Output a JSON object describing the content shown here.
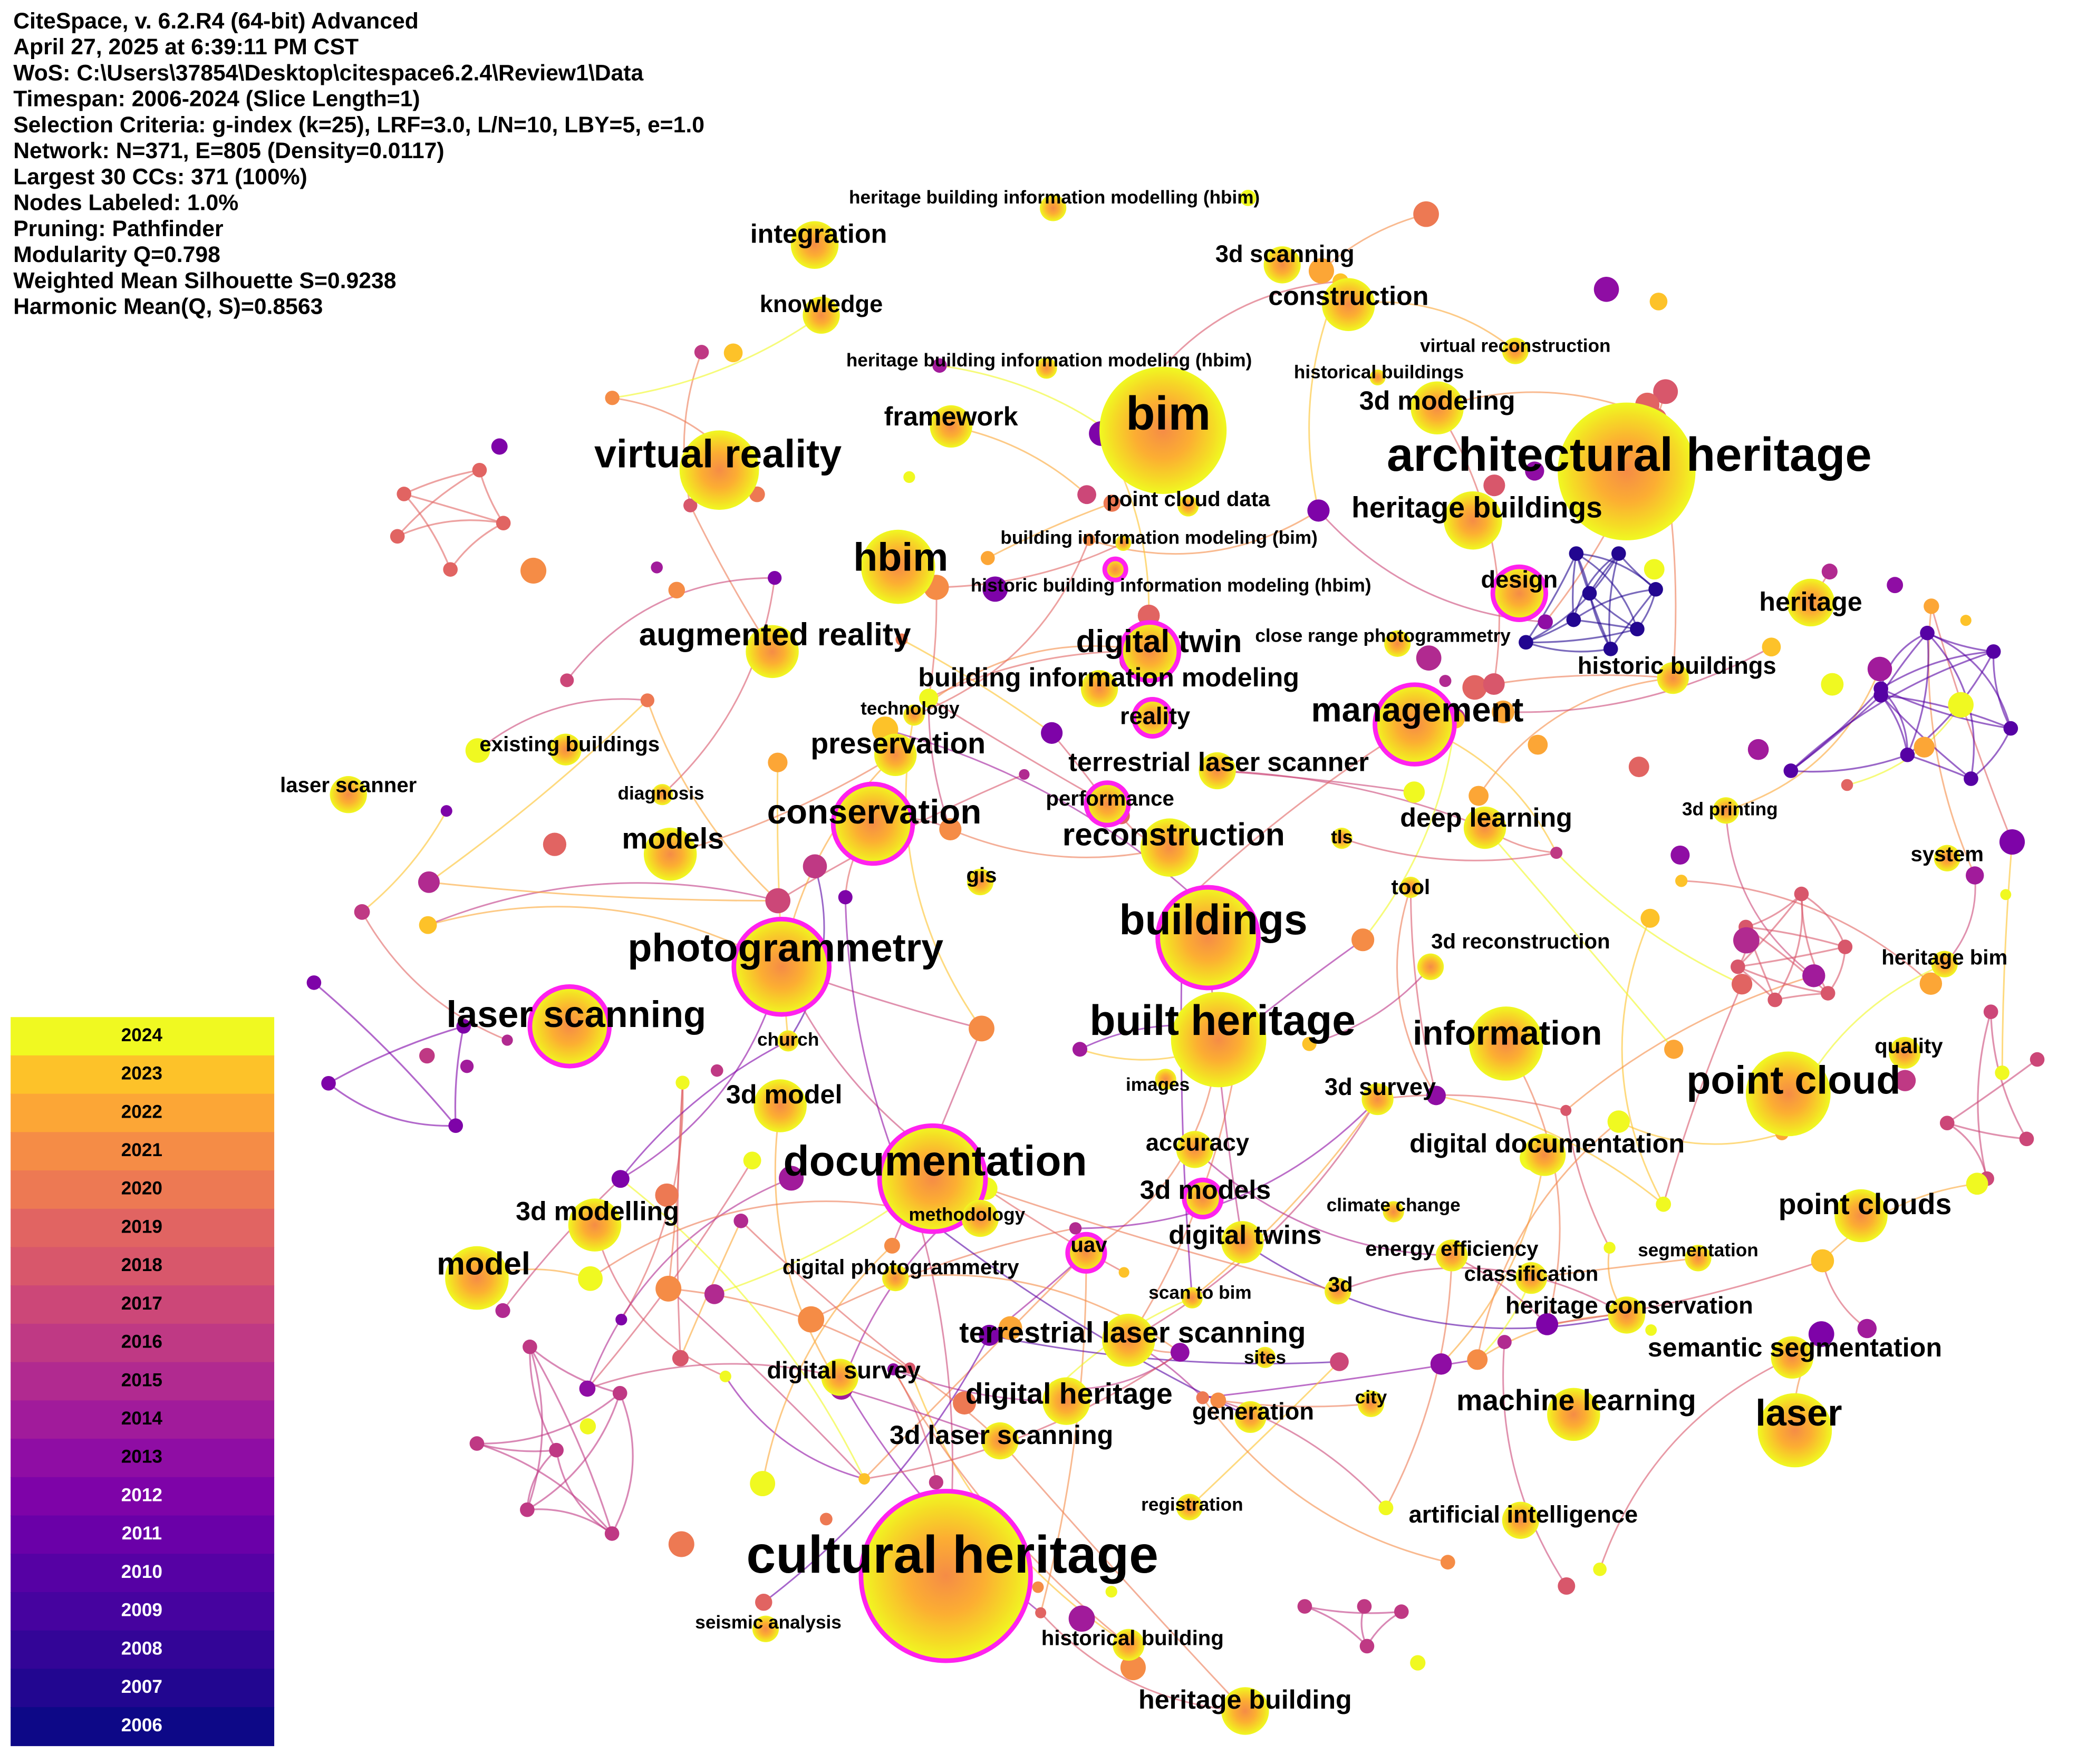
{
  "header": {
    "lines": [
      "CiteSpace, v. 6.2.R4 (64-bit) Advanced",
      "April 27, 2025 at 6:39:11 PM CST",
      "WoS: C:\\Users\\37854\\Desktop\\citespace6.2.4\\Review1\\Data",
      "Timespan: 2006-2024 (Slice Length=1)",
      "Selection Criteria: g-index (k=25), LRF=3.0, L/N=10, LBY=5, e=1.0",
      "Network: N=371, E=805 (Density=0.0117)",
      "Largest 30 CCs: 371 (100%)",
      "Nodes Labeled: 1.0%",
      "Pruning: Pathfinder",
      "Modularity Q=0.798",
      "Weighted Mean Silhouette S=0.9238",
      "Harmonic Mean(Q, S)=0.8563"
    ]
  },
  "legend": {
    "years": [
      "2024",
      "2023",
      "2022",
      "2021",
      "2020",
      "2019",
      "2018",
      "2017",
      "2016",
      "2015",
      "2014",
      "2013",
      "2012",
      "2011",
      "2010",
      "2009",
      "2008",
      "2007",
      "2006"
    ]
  },
  "nodes": [
    {
      "label": "heritage building information modelling (hbim)"
    },
    {
      "label": "integration"
    },
    {
      "label": "3d scanning"
    },
    {
      "label": "construction"
    },
    {
      "label": "knowledge"
    },
    {
      "label": "virtual reconstruction"
    },
    {
      "label": "heritage building information modeling (hbim)"
    },
    {
      "label": "historical buildings"
    },
    {
      "label": "3d modeling"
    },
    {
      "label": "bim"
    },
    {
      "label": "framework"
    },
    {
      "label": "virtual reality"
    },
    {
      "label": "architectural heritage"
    },
    {
      "label": "point cloud data"
    },
    {
      "label": "heritage buildings"
    },
    {
      "label": "building information modeling (bim)"
    },
    {
      "label": "hbim"
    },
    {
      "label": "historic building information modeling (hbim)"
    },
    {
      "label": "design"
    },
    {
      "label": "heritage"
    },
    {
      "label": "augmented reality"
    },
    {
      "label": "digital twin"
    },
    {
      "label": "close range photogrammetry"
    },
    {
      "label": "historic buildings"
    },
    {
      "label": "building information modeling"
    },
    {
      "label": "technology"
    },
    {
      "label": "management"
    },
    {
      "label": "reality"
    },
    {
      "label": "existing buildings"
    },
    {
      "label": "preservation"
    },
    {
      "label": "terrestrial laser scanner"
    },
    {
      "label": "laser scanner"
    },
    {
      "label": "diagnosis"
    },
    {
      "label": "performance"
    },
    {
      "label": "3d printing"
    },
    {
      "label": "conservation"
    },
    {
      "label": "deep learning"
    },
    {
      "label": "models"
    },
    {
      "label": "reconstruction"
    },
    {
      "label": "tls"
    },
    {
      "label": "system"
    },
    {
      "label": "gis"
    },
    {
      "label": "tool"
    },
    {
      "label": "buildings"
    },
    {
      "label": "photogrammetry"
    },
    {
      "label": "3d reconstruction"
    },
    {
      "label": "heritage bim"
    },
    {
      "label": "laser scanning"
    },
    {
      "label": "built heritage"
    },
    {
      "label": "information"
    },
    {
      "label": "church"
    },
    {
      "label": "quality"
    },
    {
      "label": "point cloud"
    },
    {
      "label": "images"
    },
    {
      "label": "3d survey"
    },
    {
      "label": "3d model"
    },
    {
      "label": "accuracy"
    },
    {
      "label": "digital documentation"
    },
    {
      "label": "documentation"
    },
    {
      "label": "3d modelling"
    },
    {
      "label": "3d models"
    },
    {
      "label": "point clouds"
    },
    {
      "label": "climate change"
    },
    {
      "label": "methodology"
    },
    {
      "label": "digital twins"
    },
    {
      "label": "uav"
    },
    {
      "label": "energy efficiency"
    },
    {
      "label": "segmentation"
    },
    {
      "label": "model"
    },
    {
      "label": "digital photogrammetry"
    },
    {
      "label": "classification"
    },
    {
      "label": "scan to bim"
    },
    {
      "label": "3d"
    },
    {
      "label": "heritage conservation"
    },
    {
      "label": "terrestrial laser scanning"
    },
    {
      "label": "semantic segmentation"
    },
    {
      "label": "sites"
    },
    {
      "label": "digital survey"
    },
    {
      "label": "city"
    },
    {
      "label": "digital heritage"
    },
    {
      "label": "machine learning"
    },
    {
      "label": "laser"
    },
    {
      "label": "generation"
    },
    {
      "label": "3d laser scanning"
    },
    {
      "label": "registration"
    },
    {
      "label": "artificial intelligence"
    },
    {
      "label": "cultural heritage"
    },
    {
      "label": "seismic analysis"
    },
    {
      "label": "historical building"
    },
    {
      "label": "heritage building"
    }
  ]
}
